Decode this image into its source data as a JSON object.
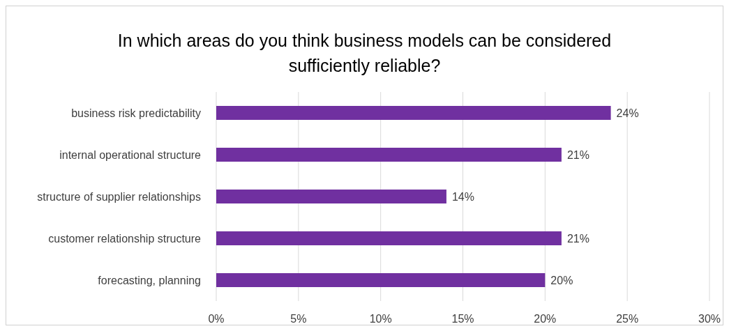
{
  "chart_data": {
    "type": "bar",
    "orientation": "horizontal",
    "title": "In which areas do you think business models can be considered sufficiently reliable?",
    "categories": [
      "business risk predictability",
      "internal operational structure",
      "structure of supplier relationships",
      "customer relationship structure",
      "forecasting, planning"
    ],
    "values": [
      24,
      21,
      14,
      21,
      20
    ],
    "color": "#7030a0",
    "value_labels": [
      "24%",
      "21%",
      "14%",
      "21%",
      "20%"
    ],
    "xlim": [
      0,
      30
    ],
    "xticks": [
      {
        "value": 0,
        "label": "0%"
      },
      {
        "value": 5,
        "label": "5%"
      },
      {
        "value": 10,
        "label": "10%"
      },
      {
        "value": 15,
        "label": "15%"
      },
      {
        "value": 20,
        "label": "20%"
      },
      {
        "value": 25,
        "label": "25%"
      },
      {
        "value": 30,
        "label": "30%"
      }
    ],
    "grid": "x"
  }
}
